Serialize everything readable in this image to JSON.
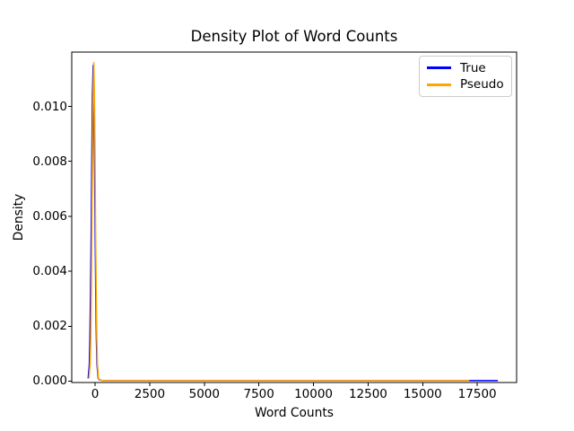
{
  "chart_data": {
    "type": "line",
    "title": "Density Plot of Word Counts",
    "xlabel": "Word Counts",
    "ylabel": "Density",
    "xlim": [
      -1070,
      19300
    ],
    "ylim": [
      -5e-05,
      0.01198
    ],
    "x_ticks": [
      0,
      2500,
      5000,
      7500,
      10000,
      12500,
      15000,
      17500
    ],
    "x_tick_labels": [
      "0",
      "2500",
      "5000",
      "7500",
      "10000",
      "12500",
      "15000",
      "17500"
    ],
    "y_ticks": [
      0.0,
      0.002,
      0.004,
      0.006,
      0.008,
      0.01
    ],
    "y_tick_labels": [
      "0.000",
      "0.002",
      "0.004",
      "0.006",
      "0.008",
      "0.010"
    ],
    "grid": false,
    "legend": {
      "position": "upper right",
      "entries": [
        "True",
        "Pseudo"
      ]
    },
    "series": [
      {
        "name": "True",
        "color": "#0000ff",
        "peak": {
          "x": -90,
          "density": 0.0115
        },
        "points": [
          [
            -320,
            0.0001
          ],
          [
            -265,
            0.0006
          ],
          [
            -240,
            0.0015
          ],
          [
            -210,
            0.0031
          ],
          [
            -180,
            0.0055
          ],
          [
            -150,
            0.0082
          ],
          [
            -120,
            0.0104
          ],
          [
            -90,
            0.0115
          ],
          [
            -60,
            0.0104
          ],
          [
            -30,
            0.0082
          ],
          [
            0,
            0.0055
          ],
          [
            30,
            0.0031
          ],
          [
            60,
            0.0015
          ],
          [
            90,
            0.0006
          ],
          [
            140,
            0.0001
          ],
          [
            200,
            4e-05
          ],
          [
            350,
            2e-05
          ],
          [
            1000,
            2e-05
          ],
          [
            4000,
            2e-05
          ],
          [
            8000,
            2e-05
          ],
          [
            12000,
            2e-05
          ],
          [
            15000,
            2e-05
          ],
          [
            17000,
            2e-05
          ],
          [
            18000,
            2e-05
          ],
          [
            18440,
            2e-05
          ]
        ]
      },
      {
        "name": "Pseudo",
        "color": "#ffa500",
        "peak": {
          "x": -60,
          "density": 0.0116
        },
        "points": [
          [
            -280,
            0.0001
          ],
          [
            -230,
            0.0006
          ],
          [
            -200,
            0.0015
          ],
          [
            -170,
            0.0033
          ],
          [
            -140,
            0.006
          ],
          [
            -110,
            0.009
          ],
          [
            -85,
            0.0106
          ],
          [
            -60,
            0.0116
          ],
          [
            -35,
            0.0106
          ],
          [
            -10,
            0.009
          ],
          [
            20,
            0.006
          ],
          [
            50,
            0.0033
          ],
          [
            80,
            0.0015
          ],
          [
            110,
            0.0006
          ],
          [
            160,
            0.0001
          ],
          [
            220,
            4e-05
          ],
          [
            350,
            2e-05
          ],
          [
            1000,
            2e-05
          ],
          [
            3000,
            2e-05
          ],
          [
            6000,
            2e-05
          ],
          [
            9000,
            2e-05
          ],
          [
            12000,
            2e-05
          ],
          [
            15000,
            2e-05
          ],
          [
            16500,
            2e-05
          ],
          [
            17130,
            2e-05
          ]
        ]
      }
    ]
  }
}
